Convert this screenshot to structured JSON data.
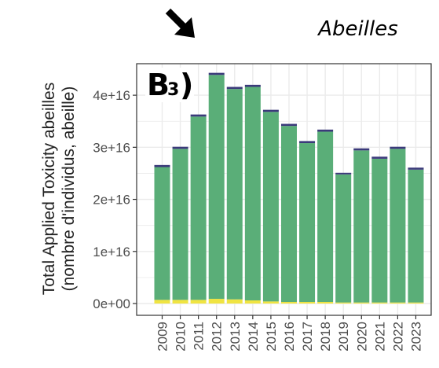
{
  "header": {
    "species_label": "Abeilles",
    "arrow_icon": "arrow-down-right-icon"
  },
  "chart_data": {
    "type": "bar",
    "stacked": true,
    "panel_label": "B",
    "panel_subscript": "3",
    "panel_suffix": ")",
    "ylabel_line1": "Total Applied Toxicity abeilles",
    "ylabel_line2": "(nombre d'individus, abeille)",
    "xlabel": "",
    "ylim": [
      0,
      4.5e+16
    ],
    "yticks": [
      0,
      1e+16,
      2e+16,
      3e+16,
      4e+16
    ],
    "ytick_labels": [
      "0e+00",
      "1e+16",
      "2e+16",
      "3e+16",
      "4e+16"
    ],
    "grid": true,
    "legend": "none",
    "categories": [
      "2009",
      "2010",
      "2011",
      "2012",
      "2013",
      "2014",
      "2015",
      "2016",
      "2017",
      "2018",
      "2019",
      "2020",
      "2021",
      "2022",
      "2023"
    ],
    "series": [
      {
        "color": "#f0e442",
        "values": [
          700000000000000.0,
          700000000000000.0,
          700000000000000.0,
          900000000000000.0,
          800000000000000.0,
          600000000000000.0,
          400000000000000.0,
          300000000000000.0,
          300000000000000.0,
          300000000000000.0,
          200000000000000.0,
          200000000000000.0,
          200000000000000.0,
          200000000000000.0,
          200000000000000.0
        ]
      },
      {
        "color": "#5aae78",
        "values": [
          2.55e+16,
          2.9e+16,
          3.52e+16,
          4.3e+16,
          4.04e+16,
          4.1e+16,
          3.64e+16,
          3.38e+16,
          3.05e+16,
          3.27e+16,
          2.46e+16,
          2.92e+16,
          2.76e+16,
          2.95e+16,
          2.55e+16
        ]
      },
      {
        "color": "#3b3a7a",
        "values": [
          400000000000000.0,
          400000000000000.0,
          400000000000000.0,
          400000000000000.0,
          400000000000000.0,
          400000000000000.0,
          400000000000000.0,
          400000000000000.0,
          400000000000000.0,
          400000000000000.0,
          300000000000000.0,
          400000000000000.0,
          400000000000000.0,
          400000000000000.0,
          400000000000000.0
        ]
      }
    ],
    "colors": {
      "panel_background": "#ffffff",
      "grid": "#ebebeb",
      "panel_border": "#333333"
    }
  }
}
